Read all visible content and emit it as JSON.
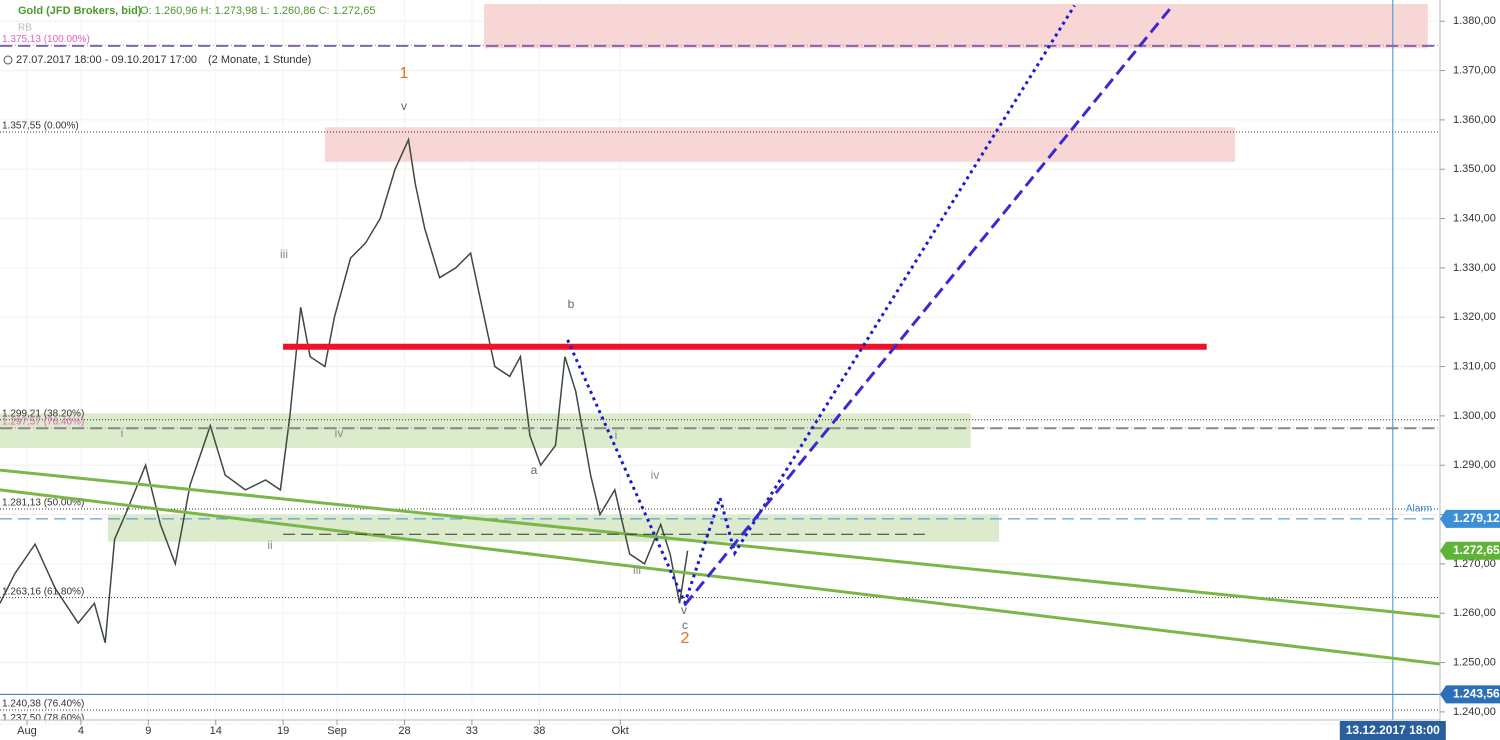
{
  "header": {
    "instrument": "Gold (JFD Brokers, bid)",
    "ohlc": "O: 1.260,96  H: 1.273,98  L: 1.260,86  C: 1.272,65",
    "range": "27.07.2017 18:00 - 09.10.2017 17:00",
    "period": "(2 Monate, 1 Stunde)",
    "indicator": "RB"
  },
  "chart_data": {
    "type": "line",
    "color": "#3d4a3d",
    "grid": true,
    "x": [
      -2.0,
      -0.9,
      0.6,
      2.1,
      3.8,
      5.0,
      5.8,
      6.5,
      7.3,
      8.8,
      9.9,
      11.0,
      12.1,
      13.6,
      14.7,
      16.2,
      17.7,
      18.8,
      19.5,
      20.3,
      21.0,
      22.1,
      22.8,
      24.0,
      25.1,
      26.2,
      27.3,
      28.3,
      28.8,
      29.5,
      30.6,
      31.8,
      32.9,
      33.6,
      34.7,
      35.8,
      36.6,
      37.3,
      38.1,
      39.2,
      39.9,
      40.7,
      41.8,
      42.5,
      43.6,
      44.7,
      45.8,
      47.0,
      47.7,
      48.4,
      49.0
    ],
    "values": [
      1262,
      1268,
      1274,
      1265,
      1258,
      1262,
      1254,
      1275,
      1280,
      1290,
      1278,
      1270,
      1286,
      1298,
      1288,
      1285,
      1287,
      1285,
      1300,
      1322,
      1312,
      1310,
      1320,
      1332,
      1335,
      1340,
      1350,
      1356,
      1347,
      1338,
      1328,
      1330,
      1333,
      1324,
      1310,
      1308,
      1312,
      1296,
      1290,
      1294,
      1312,
      1305,
      1288,
      1280,
      1285,
      1272,
      1270,
      1278,
      1272,
      1262,
      1272.65
    ],
    "xlim": [
      -2.0,
      104.8
    ],
    "ylim": [
      1234.3,
      1384.3
    ],
    "xticks": [
      {
        "value": 0,
        "label": "Aug"
      },
      4,
      9,
      14,
      19,
      {
        "value": 23,
        "label": "Sep"
      },
      28,
      33,
      38,
      {
        "value": 44,
        "label": "Okt"
      }
    ],
    "yticks": [
      {
        "value": 1240,
        "label": "1.240,00"
      },
      {
        "value": 1250,
        "label": "1.250,00"
      },
      {
        "value": 1260,
        "label": "1.260,00"
      },
      {
        "value": 1270,
        "label": "1.270,00"
      },
      {
        "value": 1280,
        "label": "1.280,00"
      },
      {
        "value": 1290,
        "label": "1.290,00"
      },
      {
        "value": 1300,
        "label": "1.300,00"
      },
      {
        "value": 1310,
        "label": "1.310,00"
      },
      {
        "value": 1320,
        "label": "1.320,00"
      },
      {
        "value": 1330,
        "label": "1.330,00"
      },
      {
        "value": 1340,
        "label": "1.340,00"
      },
      {
        "value": 1350,
        "label": "1.350,00"
      },
      {
        "value": 1360,
        "label": "1.360,00"
      },
      {
        "value": 1370,
        "label": "1.370,00"
      },
      {
        "value": 1380,
        "label": "1.380,00"
      }
    ],
    "fib_levels": [
      {
        "value": 1375.13,
        "label": "1.375,13 (100.00%)",
        "color": "#e060c0"
      },
      {
        "value": 1357.55,
        "label": "1.357,55 (0.00%)",
        "color": "#333333"
      },
      {
        "value": 1299.21,
        "label": "1.299,21 (38.20%)",
        "color": "#333333"
      },
      {
        "value": 1297.57,
        "label": "1.297,57 (76.40%)",
        "color": "#e060c0"
      },
      {
        "value": 1281.13,
        "label": "1.281,13 (50.00%)",
        "color": "#333333"
      },
      {
        "value": 1263.16,
        "label": "1.263,16 (61.80%)",
        "color": "#333333"
      },
      {
        "value": 1240.38,
        "label": "1.240,38 (76.40%)",
        "color": "#333333"
      },
      {
        "value": 1237.5,
        "label": "1.237,50 (78.60%)",
        "color": "#333333"
      }
    ],
    "zones": [
      {
        "x": [
          33.9,
          103.9
        ],
        "y": [
          1374.5,
          1383.5
        ],
        "color": "#f9d6d6"
      },
      {
        "x": [
          22.1,
          89.6
        ],
        "y": [
          1351.5,
          1358.5
        ],
        "color": "#f9d6d6"
      },
      {
        "x": [
          -2.0,
          70.0
        ],
        "y": [
          1293.5,
          1300.5
        ],
        "color": "#dcebcc"
      },
      {
        "x": [
          6.0,
          72.1
        ],
        "y": [
          1274.5,
          1280.0
        ],
        "color": "#dcebcc"
      }
    ],
    "lines": [
      {
        "x": [
          19.0,
          87.5
        ],
        "y": [
          1314,
          1314
        ],
        "color": "#f0102a",
        "width": 6,
        "dash": "solid"
      },
      {
        "x": [
          -2.0,
          104.8
        ],
        "y": [
          1289.0,
          1259.3
        ],
        "color": "#7ab648",
        "width": 3,
        "dash": "solid"
      },
      {
        "x": [
          -2.0,
          104.8
        ],
        "y": [
          1285.0,
          1249.7
        ],
        "color": "#7ab648",
        "width": 3,
        "dash": "solid"
      },
      {
        "x": [
          19.0,
          66.6
        ],
        "y": [
          1276,
          1276
        ],
        "color": "#333333",
        "width": 1,
        "dash": "dashed"
      },
      {
        "x": [
          -2.0,
          104.8
        ],
        "y": [
          1297.5,
          1297.5
        ],
        "color": "#888888",
        "width": 2,
        "dash": "dashed"
      },
      {
        "x": [
          -2.0,
          104.8
        ],
        "y": [
          1375,
          1375
        ],
        "color": "#7a6aa8",
        "width": 2,
        "dash": "dashed"
      },
      {
        "x": [
          40.1,
          48.8,
          51.4,
          52.5,
          77.7
        ],
        "y": [
          1315.4,
          1262.1,
          1283.4,
          1272.2,
          1383.2
        ],
        "color": "#1a1ad4",
        "width": 3,
        "dash": "dotted"
      },
      {
        "x": [
          48.8,
          84.8
        ],
        "y": [
          1261.7,
          1382.6
        ],
        "color": "#3a2ad0",
        "width": 3,
        "dash": "dashed"
      }
    ],
    "price_tags": [
      {
        "value": 1279.12,
        "label": "1.279,12",
        "color": "#3b8fd6",
        "line": "dashed"
      },
      {
        "value": 1272.65,
        "label": "1.272,65",
        "color": "#5fb336",
        "line": "none"
      },
      {
        "value": 1243.56,
        "label": "1.243,56",
        "color": "#2a6fb8",
        "line": "solid"
      }
    ],
    "alarm_label": "Alarm",
    "cursor": {
      "value": 101.3,
      "label": "13.12.2017 18:00"
    },
    "wave_labels": [
      {
        "text": "1",
        "color": "#e0701c"
      },
      {
        "text": "v",
        "color": "#666666"
      },
      {
        "text": "iii",
        "color": "#888888"
      },
      {
        "text": "i",
        "color": "#888888"
      },
      {
        "text": "ii",
        "color": "#888888"
      },
      {
        "text": "iv",
        "color": "#888888"
      },
      {
        "text": "b",
        "color": "#666666"
      },
      {
        "text": "a",
        "color": "#666666"
      },
      {
        "text": "i",
        "color": "#888888"
      },
      {
        "text": "iv",
        "color": "#888888"
      },
      {
        "text": "iii",
        "color": "#888888"
      },
      {
        "text": "v",
        "color": "#666666"
      },
      {
        "text": "c",
        "color": "#666666"
      },
      {
        "text": "2",
        "color": "#e0701c"
      }
    ]
  }
}
